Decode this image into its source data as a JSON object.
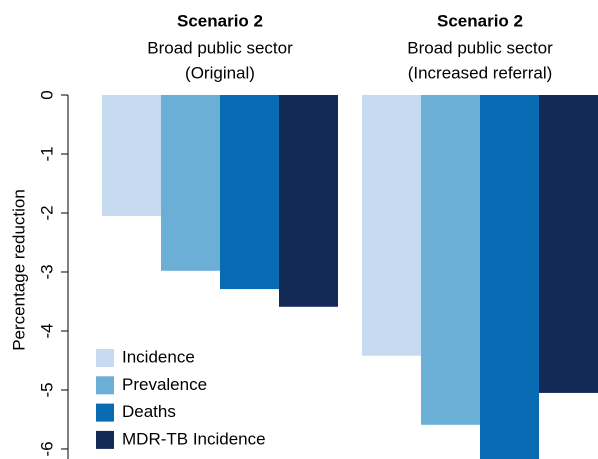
{
  "chart_data": {
    "type": "bar",
    "categories": [
      "Scenario 2",
      "Scenario 2"
    ],
    "category_sublabels": [
      [
        "Broad public sector",
        "(Original)"
      ],
      [
        "Broad public sector",
        "(Increased referral)"
      ]
    ],
    "y_label": "Percentage reduction",
    "series": [
      {
        "name": "Incidence",
        "color": "#c6dbef",
        "values": [
          -2.05,
          -4.42
        ]
      },
      {
        "name": "Prevalence",
        "color": "#6baed6",
        "values": [
          -2.98,
          -5.59
        ]
      },
      {
        "name": "Deaths",
        "color": "#0a6bb5",
        "values": [
          -3.29,
          -6.2
        ]
      },
      {
        "name": "MDR-TB Incidence",
        "color": "#132a57",
        "values": [
          -3.59,
          -5.05
        ]
      }
    ],
    "ylim": [
      -6.17,
      0
    ],
    "yticks": [
      0,
      -1,
      -2,
      -3,
      -4,
      -5,
      -6
    ],
    "legend": "bottom-left"
  }
}
